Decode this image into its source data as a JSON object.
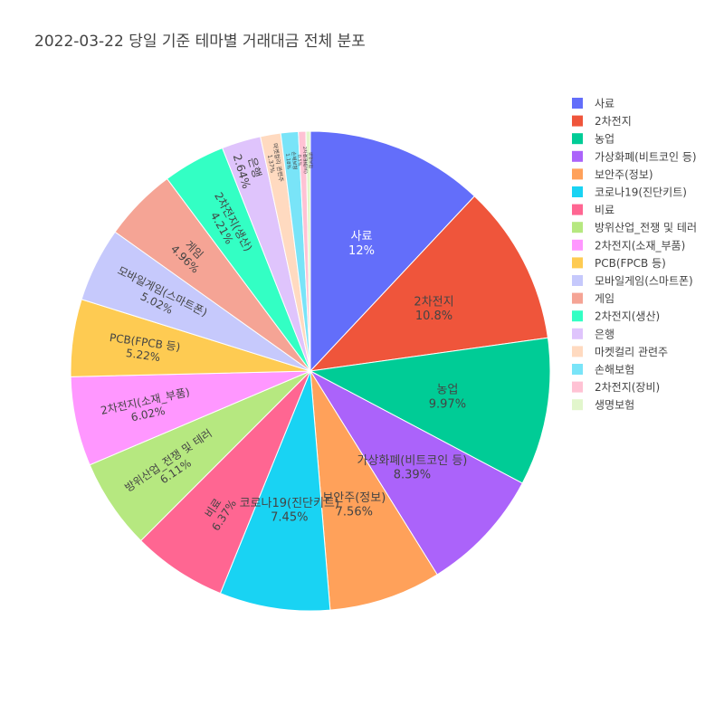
{
  "chart_data": {
    "type": "pie",
    "title": "2022-03-22 당일 기준 테마별 거래대금 전체 분포",
    "legend_position": "right",
    "direction": "clockwise",
    "start": "top",
    "slices": [
      {
        "label": "사료",
        "pct": "12%",
        "value": 12.0,
        "color": "#636efa",
        "text_color": "#ffffff"
      },
      {
        "label": "2차전지",
        "pct": "10.8%",
        "value": 10.8,
        "color": "#EF553B",
        "text_color": "#444444"
      },
      {
        "label": "농업",
        "pct": "9.97%",
        "value": 9.97,
        "color": "#00cc96",
        "text_color": "#444444"
      },
      {
        "label": "가상화폐(비트코인 등)",
        "pct": "8.39%",
        "value": 8.39,
        "color": "#ab63fa",
        "text_color": "#444444"
      },
      {
        "label": "보안주(정보)",
        "pct": "7.56%",
        "value": 7.56,
        "color": "#FFA15A",
        "text_color": "#444444"
      },
      {
        "label": "코로나19(진단키트)",
        "pct": "7.45%",
        "value": 7.45,
        "color": "#19d3f3",
        "text_color": "#444444"
      },
      {
        "label": "비료",
        "pct": "6.37%",
        "value": 6.37,
        "color": "#FF6692",
        "text_color": "#444444"
      },
      {
        "label": "방위산업_전쟁 및 테러",
        "pct": "6.11%",
        "value": 6.11,
        "color": "#B6E880",
        "text_color": "#444444"
      },
      {
        "label": "2차전지(소재_부품)",
        "pct": "6.02%",
        "value": 6.02,
        "color": "#FF97FF",
        "text_color": "#444444"
      },
      {
        "label": "PCB(FPCB 등)",
        "pct": "5.22%",
        "value": 5.22,
        "color": "#FECB52",
        "text_color": "#444444"
      },
      {
        "label": "모바일게임(스마트폰)",
        "pct": "5.02%",
        "value": 5.02,
        "color": "#c6c9fc",
        "text_color": "#444444"
      },
      {
        "label": "게임",
        "pct": "4.96%",
        "value": 4.96,
        "color": "#f5a495",
        "text_color": "#444444"
      },
      {
        "label": "2차전지(생산)",
        "pct": "4.21%",
        "value": 4.21,
        "color": "#33ffc4",
        "text_color": "#444444"
      },
      {
        "label": "은행",
        "pct": "2.64%",
        "value": 2.64,
        "color": "#dfc4fc",
        "text_color": "#444444"
      },
      {
        "label": "마켓컬리 관련주",
        "pct": "1.37%",
        "value": 1.37,
        "color": "#ffdac0",
        "text_color": "#444444"
      },
      {
        "label": "손해보험",
        "pct": "1.18%",
        "value": 1.18,
        "color": "#79e4f8",
        "text_color": "#444444"
      },
      {
        "label": "2차전지(장비)",
        "pct": "0.5%",
        "value": 0.5,
        "color": "#ffc2d4",
        "text_color": "#444444"
      },
      {
        "label": "생명보험",
        "pct": "0.3%",
        "value": 0.3,
        "color": "#e2f6cc",
        "text_color": "#444444"
      }
    ]
  }
}
